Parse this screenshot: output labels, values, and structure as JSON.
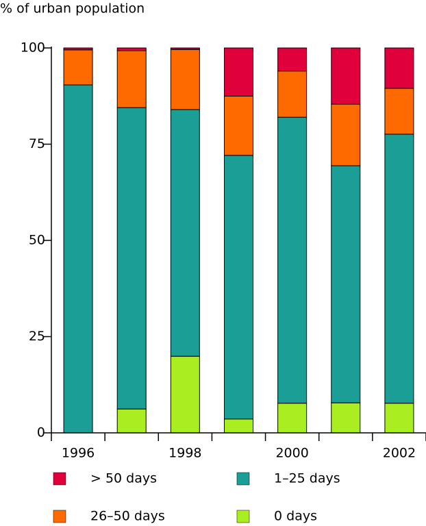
{
  "chart_data": {
    "type": "stacked-bar",
    "y_label": "% of urban population",
    "categories": [
      "1996",
      null,
      "1998",
      null,
      "2000",
      null,
      "2002"
    ],
    "series": [
      {
        "name": "0 days",
        "color": "#aaee22",
        "values": [
          0,
          6.2,
          19.9,
          3.6,
          7.7,
          7.8,
          7.7
        ]
      },
      {
        "name": "1–25 days",
        "color": "#1a9e96",
        "values": [
          90.4,
          78.3,
          64.1,
          68.5,
          74.3,
          61.6,
          69.9
        ]
      },
      {
        "name": "26–50 days",
        "color": "#ff6a00",
        "values": [
          9.1,
          14.8,
          15.6,
          15.4,
          12.0,
          16.0,
          11.9
        ]
      },
      {
        "name": "> 50 days",
        "color": "#e0003c",
        "values": [
          0.5,
          0.7,
          0.4,
          12.5,
          6.0,
          14.6,
          10.5
        ]
      }
    ],
    "ylim": [
      0,
      100
    ],
    "yticks": [
      0,
      25,
      50,
      75,
      100
    ],
    "grid": false
  }
}
